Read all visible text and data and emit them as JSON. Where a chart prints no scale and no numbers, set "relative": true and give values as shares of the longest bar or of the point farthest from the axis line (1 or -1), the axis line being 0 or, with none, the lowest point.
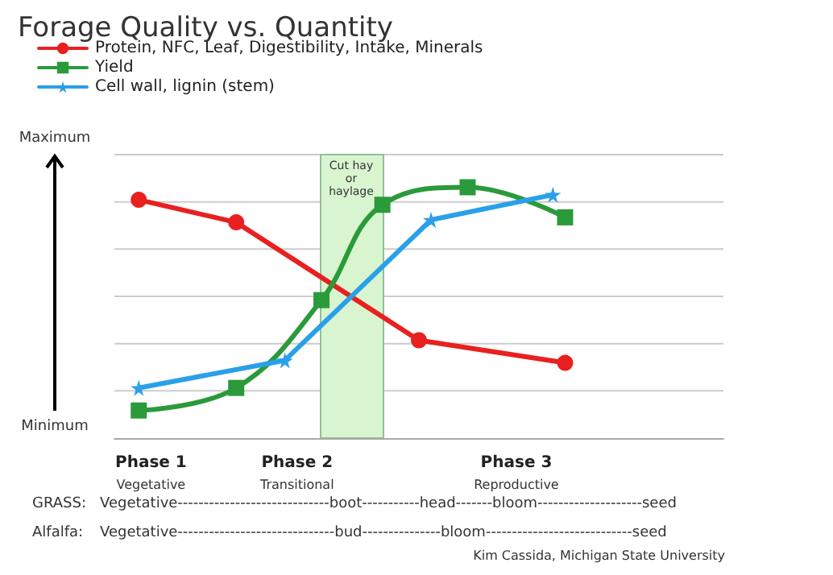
{
  "chart_data": {
    "type": "line",
    "title": "Forage Quality vs. Quantity",
    "relative": true,
    "grid": "y",
    "legend": "top left",
    "categories": [
      null,
      null,
      null,
      "Phase 1\nVegetative",
      null,
      null,
      null,
      null,
      null,
      null,
      null,
      null,
      null,
      null,
      null,
      "Phase 2\nTransitional",
      null,
      null,
      null,
      null,
      null,
      null,
      null,
      null,
      null,
      null,
      null,
      null,
      null,
      null,
      null,
      null,
      null,
      "Phase 3\nReproductive",
      null,
      null,
      null,
      null,
      null,
      null,
      null,
      null,
      null,
      null,
      null,
      null,
      null,
      null,
      null,
      null,
      null
    ],
    "series": [
      {
        "name": "Protein, NFC, Leaf, Digestibility, Intake, Minerals",
        "color": "#e8201f",
        "marker": "circle",
        "values": [
          null,
          null,
          0.95,
          null,
          null,
          null,
          null,
          null,
          null,
          null,
          0.86,
          null,
          null,
          null,
          null,
          null,
          null,
          null,
          null,
          null,
          null,
          null,
          null,
          null,
          null,
          0.39,
          null,
          null,
          null,
          null,
          null,
          null,
          null,
          null,
          null,
          null,
          null,
          0.3,
          null,
          null,
          null,
          null,
          null,
          null,
          null,
          null,
          null,
          null,
          null,
          null,
          null
        ]
      },
      {
        "name": "Yield",
        "color": "#2a9a3a",
        "marker": "square",
        "values": [
          null,
          null,
          0.11,
          null,
          null,
          null,
          null,
          null,
          null,
          null,
          0.2,
          null,
          null,
          null,
          null,
          null,
          null,
          0.55,
          null,
          null,
          null,
          null,
          0.93,
          null,
          null,
          null,
          null,
          null,
          null,
          1,
          null,
          null,
          null,
          null,
          null,
          null,
          null,
          0.88,
          null,
          null,
          null,
          null,
          null,
          null,
          null,
          null,
          null,
          null,
          null,
          null,
          null
        ]
      },
      {
        "name": "Cell wall, lignin (stem)",
        "color": "#2aa0e8",
        "marker": "star",
        "values": [
          null,
          null,
          0.2,
          null,
          null,
          null,
          null,
          null,
          null,
          null,
          null,
          null,
          null,
          null,
          0.31,
          null,
          null,
          null,
          null,
          null,
          null,
          null,
          null,
          null,
          null,
          null,
          0.87,
          null,
          null,
          null,
          null,
          null,
          null,
          null,
          null,
          null,
          0.97,
          null,
          null,
          null,
          null,
          null,
          null,
          null,
          null,
          null,
          null,
          null,
          null,
          null,
          null
        ]
      }
    ],
    "annotations": [
      "Cut hay\nor\nhaylage",
      "Maximum",
      "Minimum",
      "GRASS:",
      "Vegetative-----------------------------boot-----------head-------bloom--------------------seed",
      "Alfalfa:",
      "Vegetative------------------------------bud---------------bloom----------------------------seed",
      "Kim Cassida, Michigan State University"
    ]
  }
}
